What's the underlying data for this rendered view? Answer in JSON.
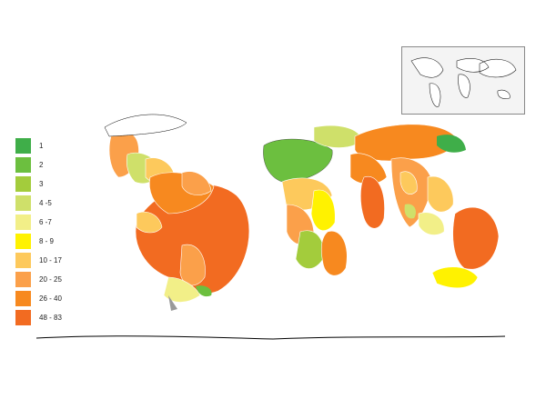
{
  "legend": {
    "items": [
      {
        "label": "1",
        "color": "#3fae49"
      },
      {
        "label": "2",
        "color": "#6cbf3f"
      },
      {
        "label": "3",
        "color": "#a3cc3c"
      },
      {
        "label": "4 -5",
        "color": "#cfe06a"
      },
      {
        "label": "6 -7",
        "color": "#f2ef88"
      },
      {
        "label": "8 - 9",
        "color": "#fff200"
      },
      {
        "label": "10 - 17",
        "color": "#fdc95c"
      },
      {
        "label": "20 - 25",
        "color": "#fba04a"
      },
      {
        "label": "26 - 40",
        "color": "#f7891f"
      },
      {
        "label": "48 - 83",
        "color": "#f26b21"
      }
    ]
  },
  "inset": {
    "icon": "world-map-locator"
  }
}
